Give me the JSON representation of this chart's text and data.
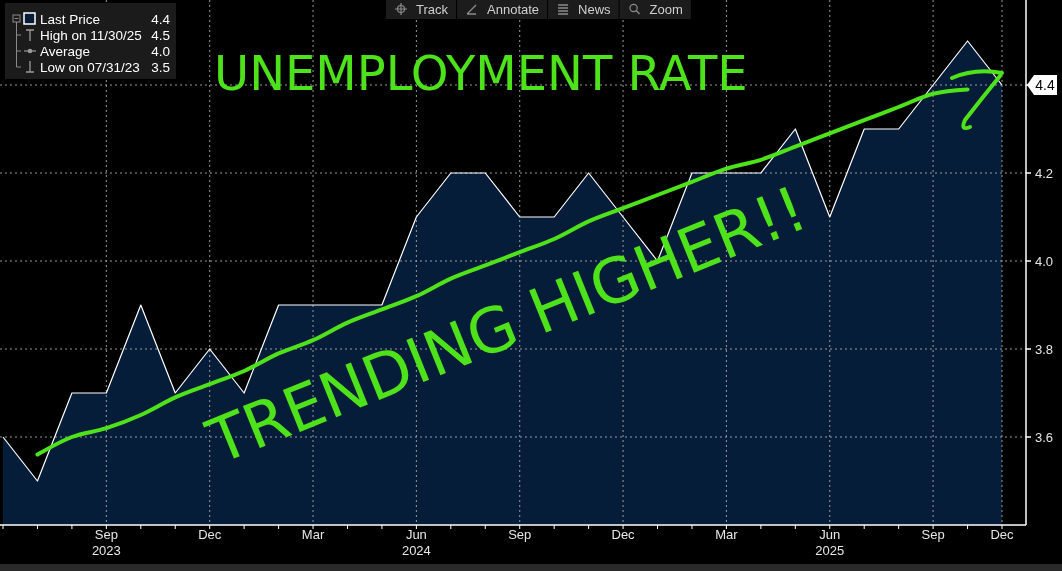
{
  "chart_data": {
    "type": "area",
    "title": "UNEMPLOYMENT RATE",
    "categories": [
      null,
      null,
      null,
      "Sep\n2023",
      null,
      null,
      "Dec",
      null,
      null,
      "Mar",
      null,
      null,
      "Jun\n2024",
      null,
      null,
      "Sep",
      null,
      null,
      "Dec",
      null,
      null,
      "Mar",
      null,
      null,
      "Jun\n2025",
      null,
      null,
      "Sep",
      null,
      "Dec"
    ],
    "series": [
      {
        "name": "Last Price",
        "color": "#061d3a",
        "values": [
          3.6,
          3.5,
          3.7,
          3.7,
          3.9,
          3.7,
          3.8,
          3.7,
          3.9,
          3.9,
          3.9,
          3.9,
          4.1,
          4.2,
          4.2,
          4.1,
          4.1,
          4.2,
          4.1,
          4.0,
          4.2,
          4.2,
          4.2,
          4.3,
          4.1,
          4.3,
          4.3,
          4.4,
          4.5,
          4.4
        ]
      },
      {
        "type": "line",
        "color": "#4ee21a",
        "values": [
          null,
          3.56,
          3.6,
          3.62,
          3.65,
          3.69,
          3.72,
          3.75,
          3.79,
          3.82,
          3.86,
          3.89,
          3.92,
          3.96,
          3.99,
          4.02,
          4.05,
          4.09,
          4.12,
          4.15,
          4.18,
          4.21,
          4.23,
          4.26,
          4.29,
          4.32,
          4.35,
          4.38,
          4.39,
          null
        ]
      }
    ],
    "ylim": [
      3.4,
      4.6
    ],
    "yticks": [
      3.6,
      3.8,
      {
        "value": 4,
        "label": "4.0"
      },
      4.2,
      {
        "value": 4.4,
        "label": null
      }
    ],
    "grid": true,
    "legend": "top left",
    "annotations": [
      "TRENDING HIGHER!!",
      "Track",
      "Annotate",
      "News",
      "Zoom",
      "4.4",
      "4.4",
      "High on 11/30/25",
      "4.5",
      "Average",
      "4.0",
      "Low on 07/31/23",
      "3.5"
    ]
  }
}
